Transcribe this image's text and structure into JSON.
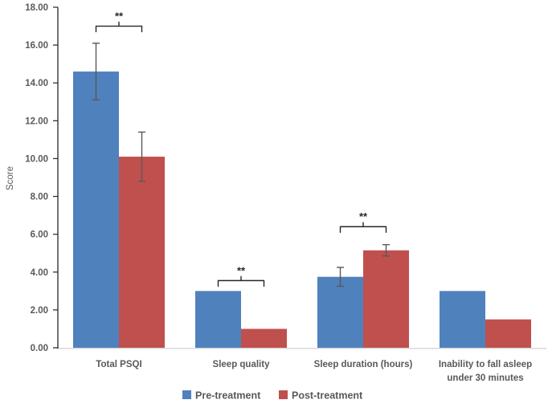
{
  "chart_data": {
    "type": "bar",
    "title": "",
    "xlabel": "",
    "ylabel": "Score",
    "ylim": [
      0,
      18
    ],
    "ytick_step": 2,
    "ytick_labels": [
      "0.00",
      "2.00",
      "4.00",
      "6.00",
      "8.00",
      "10.00",
      "12.00",
      "14.00",
      "16.00",
      "18.00"
    ],
    "grid": false,
    "legend_position": "bottom",
    "categories": [
      "Total PSQI",
      "Sleep quality",
      "Sleep duration (hours)",
      "Inability to fall asleep\nunder 30 minutes"
    ],
    "series": [
      {
        "name": "Pre-treatment",
        "color": "#4F81BD",
        "values": [
          14.6,
          3.0,
          3.75,
          3.0
        ],
        "errors": [
          1.5,
          null,
          0.5,
          null
        ]
      },
      {
        "name": "Post-treatment",
        "color": "#C0504D",
        "values": [
          10.1,
          1.0,
          5.15,
          1.5
        ],
        "errors": [
          1.3,
          null,
          0.3,
          null
        ]
      }
    ],
    "significance": [
      {
        "category_index": 0,
        "label": "**",
        "y_value": 17.0
      },
      {
        "category_index": 1,
        "label": "**",
        "y_value": 3.55
      },
      {
        "category_index": 2,
        "label": "**",
        "y_value": 6.4
      }
    ],
    "colors": {
      "axis_y": "#262626",
      "axis_x": "#D9D9D9",
      "error_bar": "#595959",
      "bracket": "#262626"
    }
  }
}
